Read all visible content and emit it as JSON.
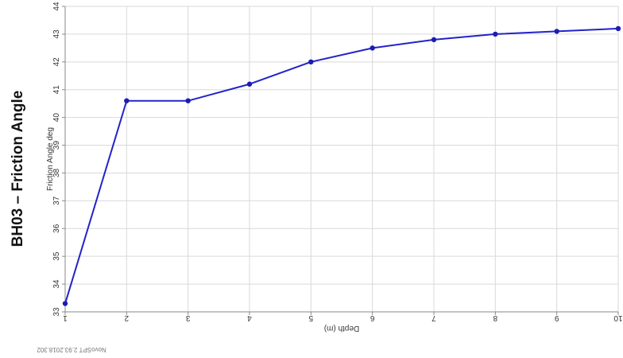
{
  "chart_data": {
    "type": "line",
    "title": "BH03 – Friction Angle",
    "xlabel": "Depth (m)",
    "ylabel": "Friction Angle deg",
    "x": [
      1,
      2,
      3,
      4,
      5,
      6,
      7,
      8,
      9,
      10
    ],
    "series": [
      {
        "values": [
          33.3,
          40.6,
          40.6,
          41.2,
          42.0,
          42.5,
          42.8,
          43.0,
          43.1,
          43.2
        ]
      }
    ],
    "xlim": [
      1,
      10
    ],
    "ylim": [
      33,
      44
    ],
    "x_ticks": [
      "1",
      "2",
      "3",
      "4",
      "5",
      "6",
      "7",
      "8",
      "9",
      "10"
    ],
    "y_ticks": [
      "33",
      "34",
      "35",
      "36",
      "37",
      "38",
      "39",
      "40",
      "41",
      "42",
      "43",
      "44"
    ],
    "grid": true,
    "legend": "none",
    "line_color": "#2323c8",
    "marker_color": "#1c1cb4",
    "footer": "NovoSPT 2.93.2018.302"
  }
}
